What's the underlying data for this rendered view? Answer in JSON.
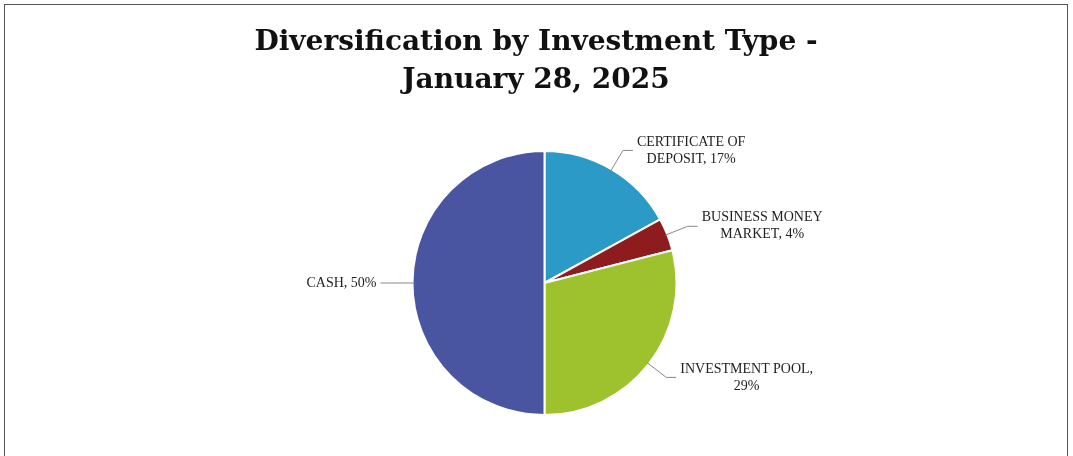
{
  "chart_data": {
    "type": "pie",
    "title": "Diversification by Investment Type - January 28, 2025",
    "categories": [
      "CERTIFICATE OF DEPOSIT, 17%",
      "BUSINESS MONEY MARKET, 4%",
      "INVESTMENT POOL, 29%",
      "CASH, 50%"
    ],
    "values": [
      17,
      4,
      29,
      50
    ],
    "colors": [
      "#2c9ac6",
      "#8e1c1f",
      "#9dc22d",
      "#4a55a2"
    ]
  }
}
